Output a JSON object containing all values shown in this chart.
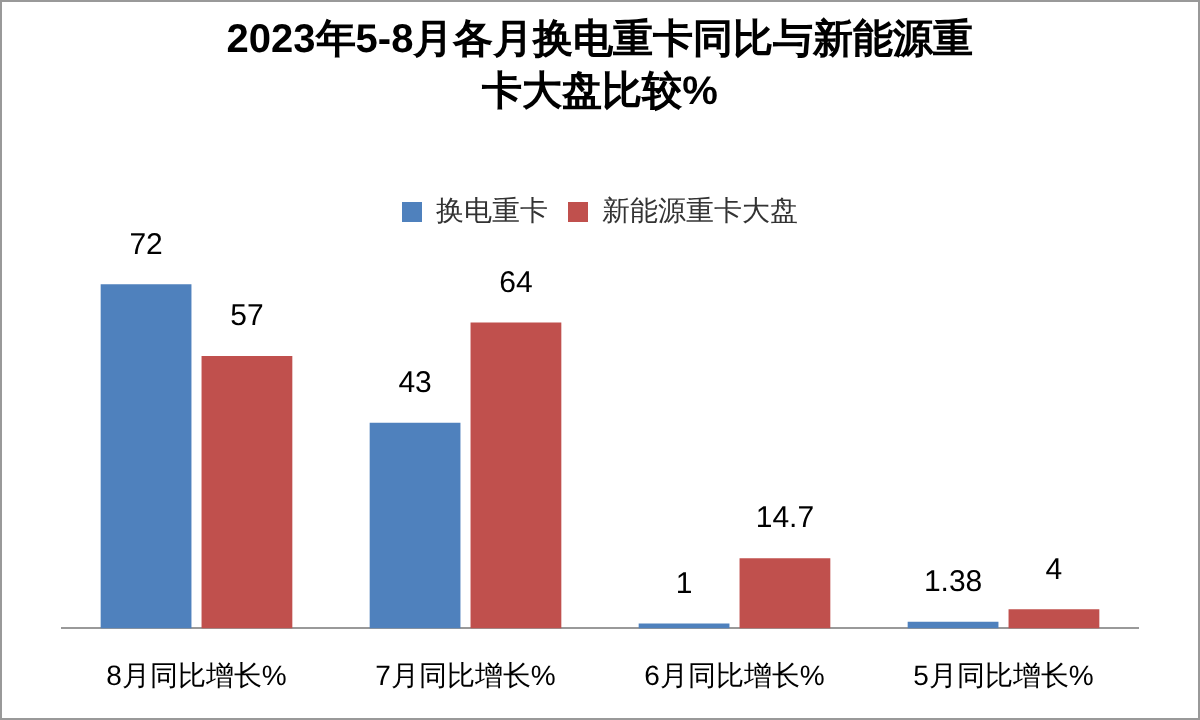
{
  "chart_data": {
    "type": "bar",
    "title": "2023年5-8月各月换电重卡同比与新能源重卡大盘比较%",
    "categories": [
      "8月同比增长%",
      "7月同比增长%",
      "6月同比增长%",
      "5月同比增长%"
    ],
    "series": [
      {
        "name": "换电重卡",
        "color": "#4f81bd",
        "values": [
          72,
          43,
          1,
          1.38
        ]
      },
      {
        "name": "新能源重卡大盘",
        "color": "#c0504d",
        "values": [
          57,
          64,
          14.7,
          4
        ]
      }
    ],
    "data_labels": true,
    "legend": "top"
  }
}
